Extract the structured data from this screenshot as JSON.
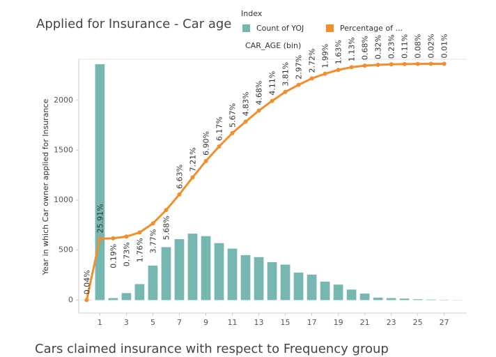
{
  "chart_data": {
    "type": "bar-line",
    "title": "Applied for Insurance - Car age",
    "legend_title": "Index",
    "legend_subtitle": "CAR_AGE (bin)",
    "ylabel": "Year in which Car owner applied for Insurance",
    "footer_title": "Cars claimed insurance with respect to Frequency group",
    "x": [
      0,
      1,
      2,
      3,
      4,
      5,
      6,
      7,
      8,
      9,
      10,
      11,
      12,
      13,
      14,
      15,
      16,
      17,
      18,
      19,
      20,
      21,
      22,
      23,
      24,
      25,
      26,
      27,
      28
    ],
    "xlim": [
      -0.6,
      28.7
    ],
    "xticks": [
      1,
      3,
      5,
      7,
      9,
      11,
      13,
      15,
      17,
      19,
      21,
      23,
      25,
      27
    ],
    "ylim": [
      -130,
      2410
    ],
    "yticks": [
      0,
      500,
      1000,
      1500,
      2000
    ],
    "y2lim": [
      -5.5,
      101.9
    ],
    "series": [
      {
        "name": "Count of YOJ",
        "type": "bar",
        "color": "#76b7b2",
        "values": [
          3,
          2360,
          20,
          70,
          160,
          345,
          530,
          610,
          665,
          640,
          570,
          515,
          450,
          430,
          380,
          355,
          275,
          255,
          185,
          155,
          105,
          65,
          25,
          20,
          15,
          8,
          5,
          3,
          2
        ]
      },
      {
        "name": "Percentage of ...",
        "type": "running-line",
        "axis": "y2",
        "color": "#f28e2b",
        "values": [
          0.04,
          25.91,
          0.19,
          0.73,
          1.76,
          3.77,
          5.68,
          6.63,
          7.21,
          6.9,
          6.17,
          5.67,
          4.83,
          4.68,
          4.11,
          3.81,
          2.97,
          2.72,
          1.99,
          1.63,
          1.13,
          0.68,
          0.32,
          0.23,
          0.11,
          0.08,
          0.02,
          0.01,
          null
        ],
        "value_labels": [
          "0.04%",
          "25.91%",
          "0.19%",
          "0.73%",
          "1.76%",
          "3.77%",
          "5.68%",
          "6.63%",
          "7.21%",
          "6.90%",
          "6.17%",
          "5.67%",
          "4.83%",
          "4.68%",
          "4.11%",
          "3.81%",
          "2.97%",
          "2.72%",
          "1.99%",
          "1.63%",
          "1.13%",
          "0.68%",
          "0.32%",
          "0.23%",
          "0.11%",
          "0.08%",
          "0.02%",
          "0.01%",
          null
        ]
      }
    ]
  }
}
